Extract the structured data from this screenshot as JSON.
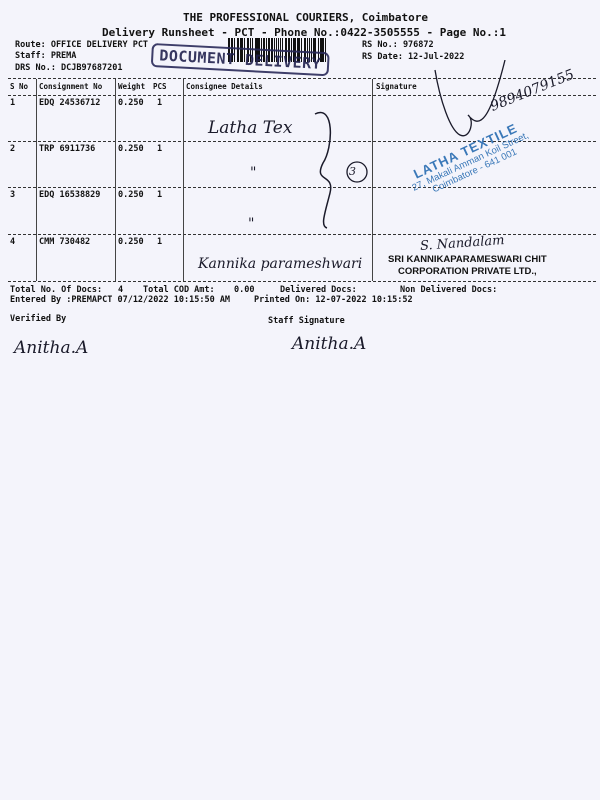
{
  "header": {
    "company": "THE PROFESSIONAL COURIERS, Coimbatore",
    "subtitle": "Delivery Runsheet - PCT - Phone No.:0422-3505555 - Page No.:1",
    "route": "Route: OFFICE DELIVERY PCT",
    "staff": "Staff: PREMA",
    "drs": "DRS No.: DCJB97687201",
    "rs_no": "RS No.: 976872",
    "rs_date": "RS Date: 12-Jul-2022"
  },
  "table": {
    "columns": [
      "S No",
      "Consignment No",
      "Weight",
      "PCS",
      "Consignee Details",
      "Signature"
    ],
    "rows": [
      {
        "sno": "1",
        "consignment": "EDQ 24536712",
        "weight": "0.250",
        "pcs": "1"
      },
      {
        "sno": "2",
        "consignment": "TRP 6911736",
        "weight": "0.250",
        "pcs": "1"
      },
      {
        "sno": "3",
        "consignment": "EDQ 16538829",
        "weight": "0.250",
        "pcs": "1"
      },
      {
        "sno": "4",
        "consignment": "CMM 730482",
        "weight": "0.250",
        "pcs": "1"
      }
    ]
  },
  "footer": {
    "total_docs_label": "Total No. Of Docs:",
    "total_docs": "4",
    "cod_label": "Total COD Amt:",
    "cod": "0.00",
    "delivered": "Delivered Docs:",
    "non_delivered": "Non Delivered Docs:",
    "entered": "Entered By :PREMAPCT 07/12/2022 10:15:50 AM",
    "printed": "Printed On: 12-07-2022 10:15:52",
    "verified": "Verified By",
    "staff_signature": "Staff Signature"
  },
  "handwriting": {
    "row1": "Latha Tex",
    "ditto2": "\"",
    "ditto3": "\"",
    "circled": "3",
    "row4": "Kannika parameshwari",
    "phone": "9894079155",
    "sign4": "S. Nandalam",
    "verified_sign": "Anitha.A",
    "staff_sign": "Anitha.A"
  },
  "stamps": {
    "document_delivery": "DOCUMENT DELIVERY",
    "latha_name": "LATHA TEXTILE",
    "latha_addr1": "27, Makali Amman Koil Street,",
    "latha_addr2": "Coimbatore - 641 001",
    "sri_line1": "SRI KANNIKAPARAMESWARI CHIT",
    "sri_line2": "CORPORATION PRIVATE LTD.,"
  },
  "colors": {
    "paper": "#f4f4fb",
    "stamp_blue": "#3a78b8",
    "ink": "#1a1a2a"
  }
}
